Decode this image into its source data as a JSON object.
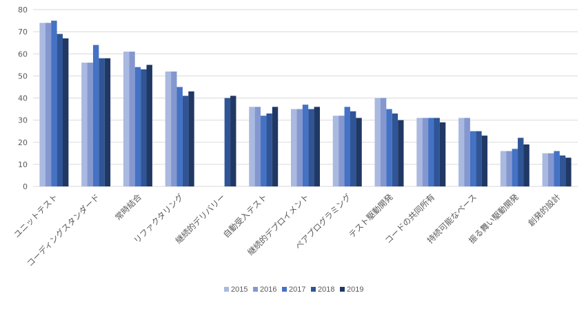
{
  "colors": {
    "grid": "#d9d9d9",
    "text": "#595959",
    "series": [
      "#a9b9e0",
      "#8497cf",
      "#4472c4",
      "#2f5597",
      "#203864"
    ]
  },
  "chart_data": {
    "type": "bar",
    "title": "",
    "xlabel": "",
    "ylabel": "",
    "ylim": [
      0,
      80
    ],
    "yticks": [
      0,
      10,
      20,
      30,
      40,
      50,
      60,
      70,
      80
    ],
    "grid": true,
    "legend_position": "bottom",
    "categories": [
      "ユニットテスト",
      "コーディングスタンダード",
      "常時結合",
      "リファクタリング",
      "継続的デリバリー",
      "自動受入テスト",
      "継続的デプロイメント",
      "ペアプログラミング",
      "テスト駆動開発",
      "コードの共同所有",
      "持続可能なペース",
      "振る舞い駆動開発",
      "創発的設計"
    ],
    "series": [
      {
        "name": "2015",
        "values": [
          74,
          56,
          61,
          52,
          null,
          36,
          35,
          32,
          40,
          31,
          31,
          16,
          15
        ]
      },
      {
        "name": "2016",
        "values": [
          74,
          56,
          61,
          52,
          null,
          36,
          35,
          32,
          40,
          31,
          31,
          16,
          15
        ]
      },
      {
        "name": "2017",
        "values": [
          75,
          64,
          54,
          45,
          null,
          32,
          37,
          36,
          35,
          31,
          25,
          17,
          16
        ]
      },
      {
        "name": "2018",
        "values": [
          69,
          58,
          53,
          41,
          40,
          33,
          35,
          34,
          33,
          31,
          25,
          22,
          14
        ]
      },
      {
        "name": "2019",
        "values": [
          67,
          58,
          55,
          43,
          41,
          36,
          36,
          31,
          30,
          29,
          23,
          19,
          13
        ]
      }
    ]
  }
}
